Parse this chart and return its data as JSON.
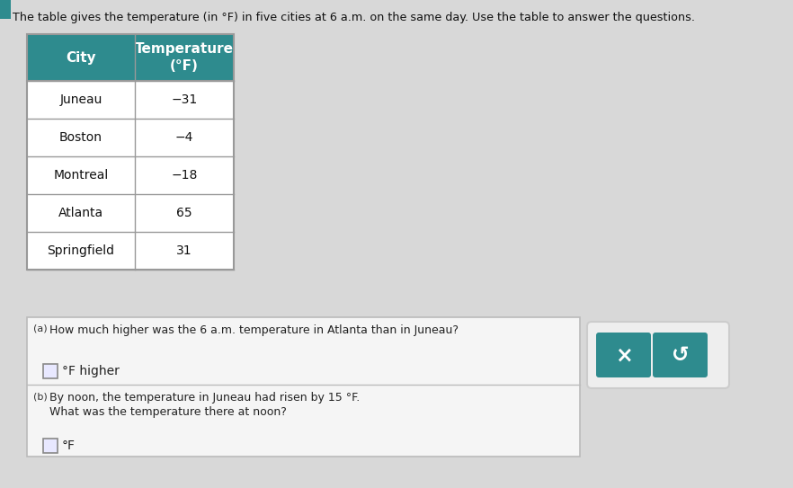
{
  "title": "The table gives the temperature (in °F) in five cities at 6 a.m. on the same day. Use the table to answer the questions.",
  "table_header_col1": "City",
  "table_header_col2": "Temperature\n(°F)",
  "table_data": [
    [
      "Juneau",
      "−31"
    ],
    [
      "Boston",
      "−4"
    ],
    [
      "Montreal",
      "−18"
    ],
    [
      "Atlanta",
      "65"
    ],
    [
      "Springfield",
      "31"
    ]
  ],
  "header_bg": "#2e8b8e",
  "header_text_color": "#ffffff",
  "cell_bg": "#ffffff",
  "border_color": "#999999",
  "q_a_label": "(a)",
  "q_a_text": "How much higher was the 6 a.m. temperature in Atlanta than in Juneau?",
  "q_a_answer_suffix": "°F higher",
  "q_b_label": "(b)",
  "q_b_text": "By noon, the temperature in Juneau had risen by 15 °F.",
  "q_b_text2": "What was the temperature there at noon?",
  "q_b_answer_suffix": "°F",
  "btn_color": "#2e8b8e",
  "background_color": "#d8d8d8",
  "qa_box_bg": "#f5f5f5",
  "qa_box_border": "#bbbbbb"
}
